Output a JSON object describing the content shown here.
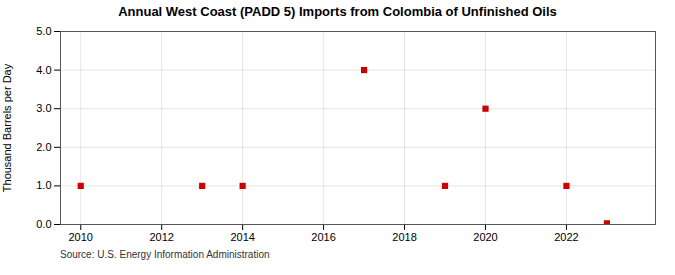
{
  "chart_data": {
    "type": "scatter",
    "title": "Annual West Coast (PADD 5) Imports from Colombia of Unfinished Oils",
    "ylabel": "Thousand Barrels per Day",
    "source": "Source: U.S. Energy Information Administration",
    "x": [
      2010,
      2013,
      2014,
      2017,
      2019,
      2020,
      2022,
      2023
    ],
    "values": [
      1.0,
      1.0,
      1.0,
      4.0,
      1.0,
      3.0,
      1.0,
      0.03
    ],
    "color": "#cc0000",
    "marker": "square",
    "xlim": [
      2009.5,
      2024.2
    ],
    "ylim": [
      0.0,
      5.0
    ],
    "xticks": [
      2010,
      2012,
      2014,
      2016,
      2018,
      2020,
      2022
    ],
    "yticks": [
      {
        "value": 0,
        "label": "0.0"
      },
      {
        "value": 1,
        "label": "1.0"
      },
      {
        "value": 2,
        "label": "2.0"
      },
      {
        "value": 3,
        "label": "3.0"
      },
      {
        "value": 4,
        "label": "4.0"
      },
      {
        "value": 5,
        "label": "5.0"
      }
    ],
    "grid": true
  }
}
